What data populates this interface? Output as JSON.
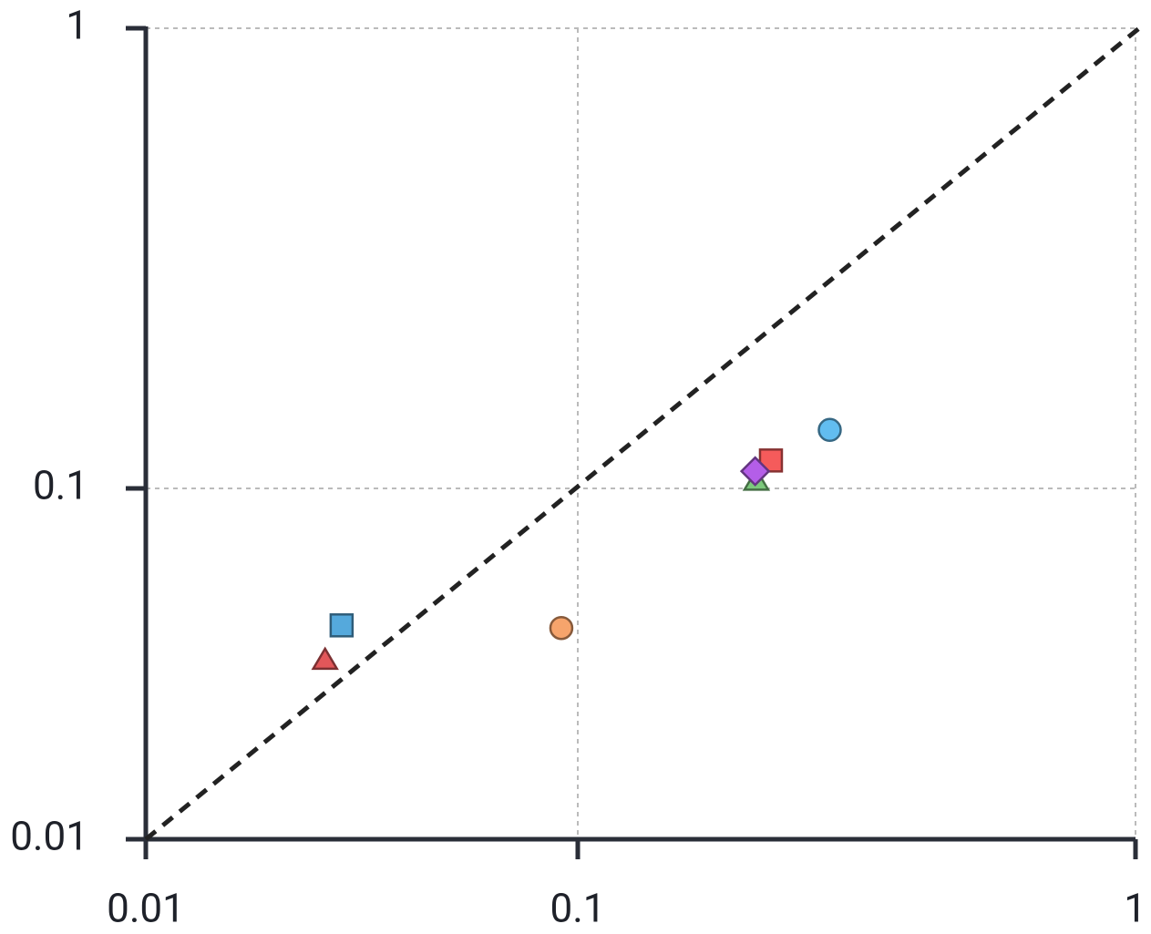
{
  "chart_data": {
    "type": "scatter",
    "xscale": "log",
    "yscale": "log",
    "xlim": [
      0.01,
      1
    ],
    "ylim": [
      0.01,
      1
    ],
    "xticks": [
      0.01,
      0.1,
      1
    ],
    "yticks": [
      0.01,
      0.1,
      1
    ],
    "grid": true,
    "diagonal": true,
    "series": [
      {
        "marker": "square",
        "color": "#55a9dc",
        "x": [
          0.0284
        ],
        "y": [
          0.0407
        ]
      },
      {
        "marker": "triangle",
        "color": "#e2575a",
        "x": [
          0.026
        ],
        "y": [
          0.0325
        ]
      },
      {
        "marker": "circle",
        "color": "#f6a46c",
        "x": [
          0.0916
        ],
        "y": [
          0.04
        ]
      },
      {
        "marker": "triangle",
        "color": "#7cc87c",
        "x": [
          0.209
        ],
        "y": [
          0.104
        ]
      },
      {
        "marker": "square",
        "color": "#f55b5b",
        "x": [
          0.222
        ],
        "y": [
          0.115
        ]
      },
      {
        "marker": "diamond",
        "color": "#b45ee8",
        "x": [
          0.208
        ],
        "y": [
          0.109
        ]
      },
      {
        "marker": "circle",
        "color": "#62bdf0",
        "x": [
          0.283
        ],
        "y": [
          0.134
        ]
      }
    ]
  }
}
